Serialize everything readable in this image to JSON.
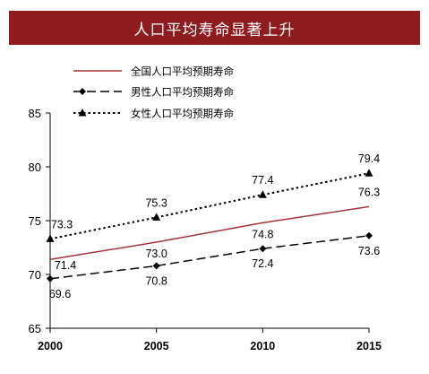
{
  "colors": {
    "banner": "#8e1b1e",
    "total_line": "#a8323a",
    "male_line": "#000000",
    "female_line": "#000000"
  },
  "chart_data": {
    "type": "line",
    "title": "人口平均寿命显著上升",
    "x": [
      2000,
      2005,
      2010,
      2015
    ],
    "ylim": [
      65,
      85
    ],
    "yticks": [
      65,
      70,
      75,
      80,
      85
    ],
    "grid": false,
    "legend_position": "top-left",
    "series": [
      {
        "name": "全国人口平均预期寿命",
        "values": [
          71.4,
          73.0,
          74.8,
          76.3
        ],
        "style": "solid",
        "marker": "none"
      },
      {
        "name": "男性人口平均预期寿命",
        "values": [
          69.6,
          70.8,
          72.4,
          73.6
        ],
        "style": "dashed",
        "marker": "diamond"
      },
      {
        "name": "女性人口平均预期寿命",
        "values": [
          73.3,
          75.3,
          77.4,
          79.4
        ],
        "style": "dotted",
        "marker": "triangle"
      }
    ]
  }
}
